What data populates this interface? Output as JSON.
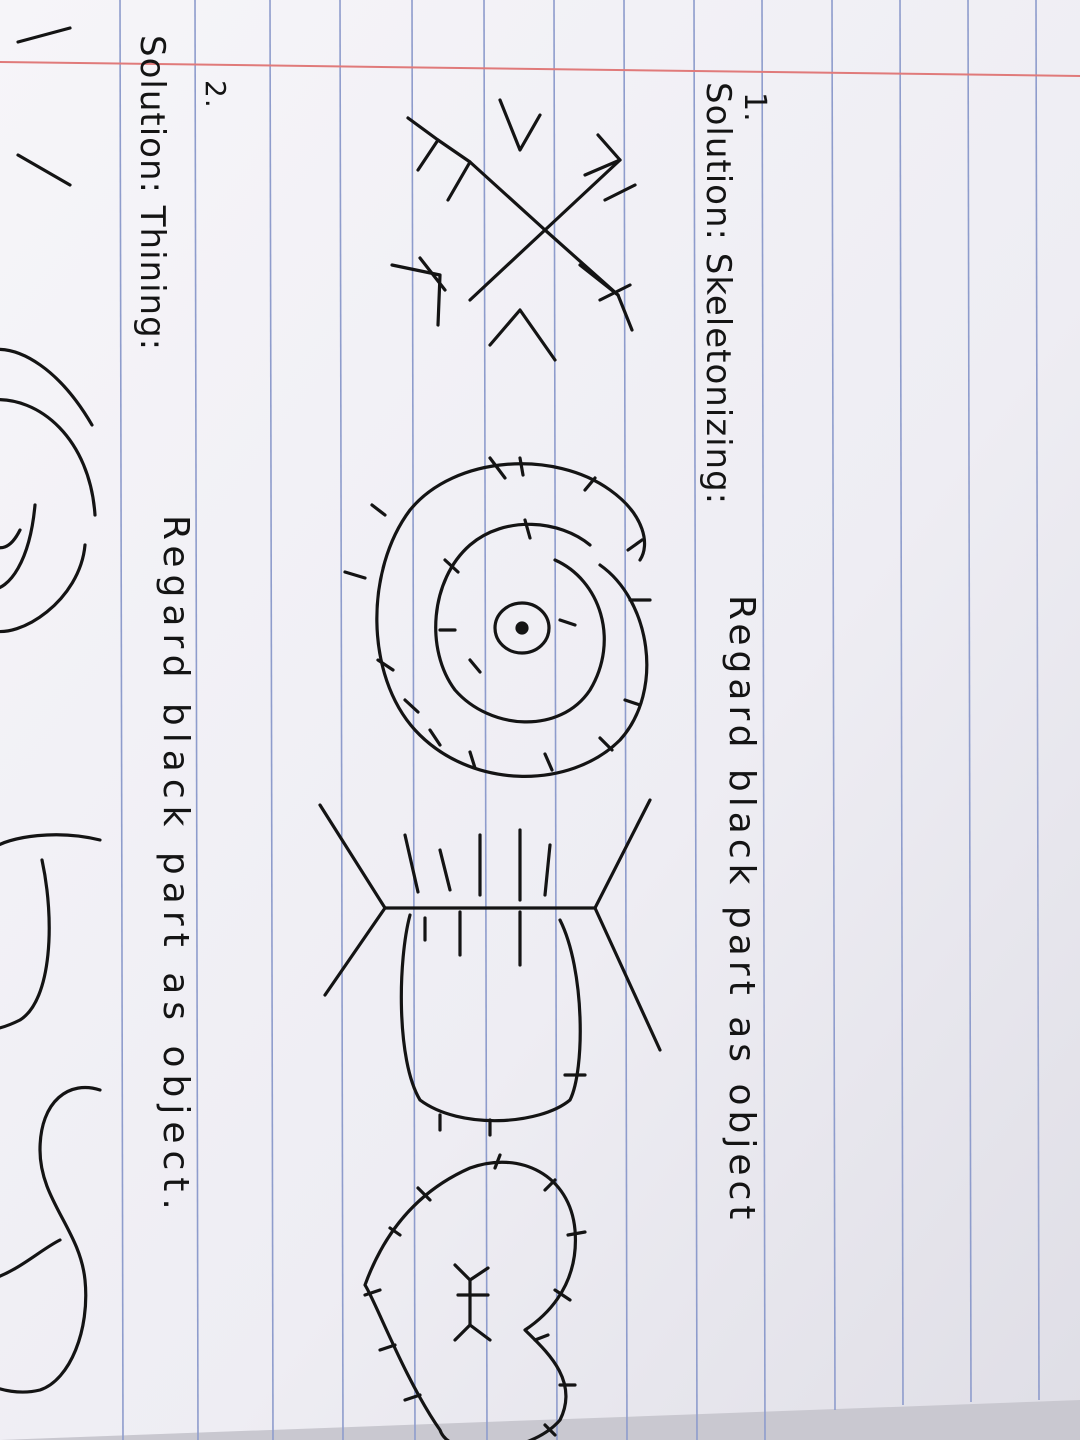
{
  "note": {
    "section_1": {
      "number": "1.",
      "heading": "Solution: Skeletonizing:",
      "instruction": "Regard black part as object"
    },
    "section_2": {
      "number": "2.",
      "heading": "Solution: Thining:",
      "instruction": "Regard black part as object."
    }
  },
  "colors": {
    "paper": "#f3f2f6",
    "rule_line": "#8e9ccc",
    "margin_line": "#e07a7a",
    "ink": "#141414"
  }
}
